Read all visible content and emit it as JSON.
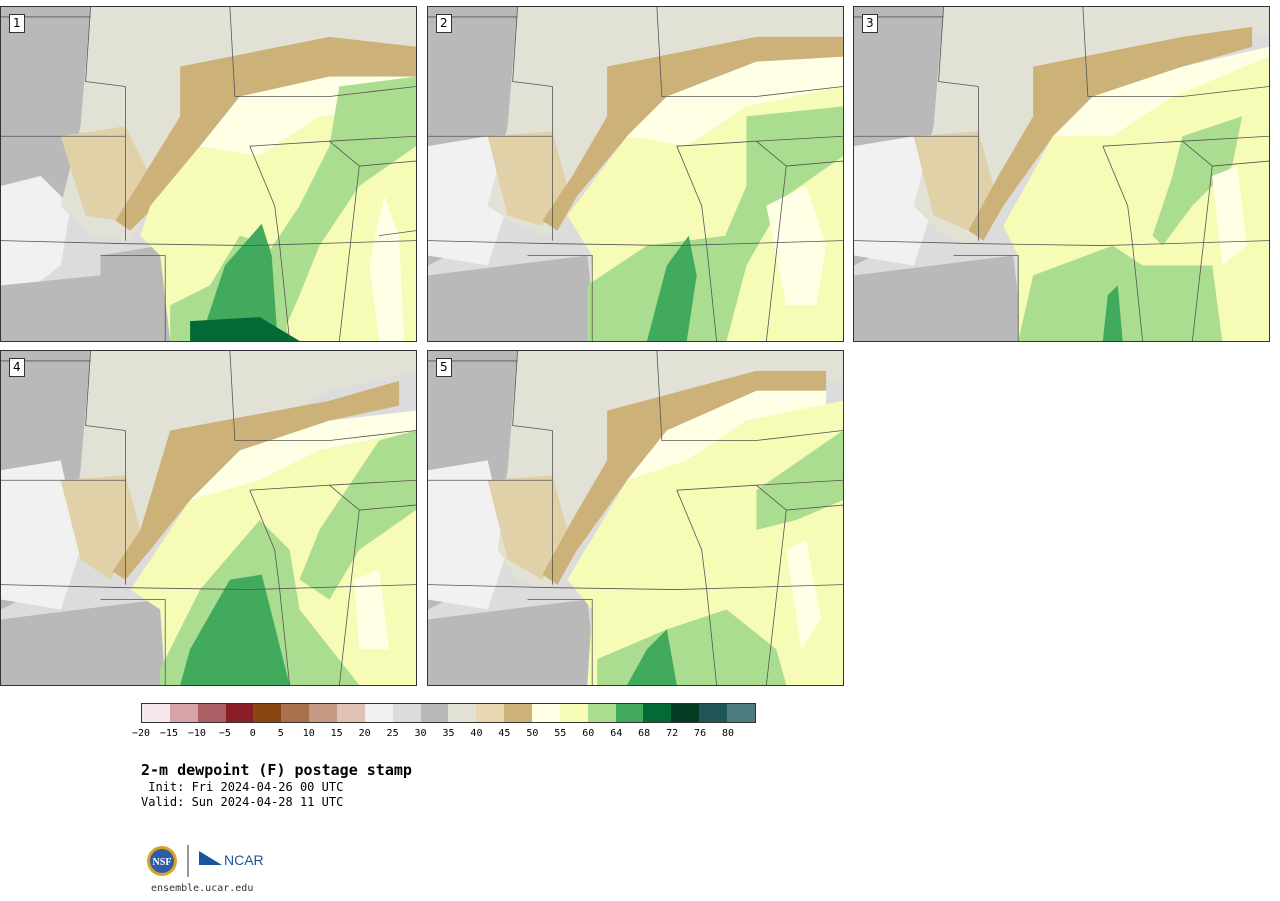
{
  "panels": [
    {
      "label": "1"
    },
    {
      "label": "2"
    },
    {
      "label": "3"
    },
    {
      "label": "4"
    },
    {
      "label": "5"
    }
  ],
  "colorbar": {
    "colors": [
      "#f6e7ea",
      "#d5a3a8",
      "#ae5e65",
      "#8a1e26",
      "#8a4510",
      "#a9714c",
      "#c49a83",
      "#e0c3b4",
      "#f1f1f1",
      "#dcdcdc",
      "#b9b9b9",
      "#e2e1d6",
      "#e8d7b0",
      "#ccb178",
      "#feffe5",
      "#f6fbb6",
      "#aadd90",
      "#42aa5c",
      "#036a35",
      "#033b23",
      "#205656",
      "#4d7b7e"
    ],
    "ticks": [
      "−20",
      "−15",
      "−10",
      "−5",
      "0",
      "5",
      "10",
      "15",
      "20",
      "25",
      "30",
      "35",
      "40",
      "45",
      "50",
      "55",
      "60",
      "64",
      "68",
      "72",
      "76",
      "80"
    ]
  },
  "title": "2-m dewpoint (F) postage stamp",
  "init": " Init: Fri 2024-04-26 00 UTC",
  "valid": "Valid: Sun 2024-04-28 11 UTC",
  "logos": {
    "nsf": "NSF",
    "ncar": "NCAR"
  },
  "site": "ensemble.ucar.edu",
  "map_colors": {
    "gray_dark": "#b9b9b9",
    "gray_light": "#dcdcdc",
    "beige_light": "#e2e1d6",
    "tan": "#e0d1a8",
    "tan_dark": "#ccb178",
    "cream": "#feffe5",
    "yellow": "#f6fbb6",
    "green_light": "#aadd90",
    "green": "#42aa5c",
    "green_dark": "#036a35",
    "pink": "#d6b3a4"
  }
}
